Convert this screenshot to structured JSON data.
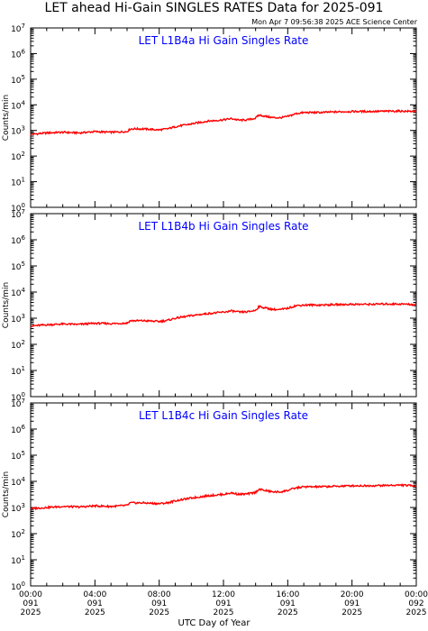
{
  "header": {
    "title": "LET ahead Hi-Gain SINGLES RATES Data for 2025-091",
    "timestamp": "Mon Apr  7 09:56:38 2025 ACE Science Center"
  },
  "xaxis": {
    "label": "UTC Day of Year",
    "ticks": [
      {
        "time": "00:00",
        "doy": "091",
        "year": "2025"
      },
      {
        "time": "04:00",
        "doy": "091",
        "year": "2025"
      },
      {
        "time": "08:00",
        "doy": "091",
        "year": "2025"
      },
      {
        "time": "12:00",
        "doy": "091",
        "year": "2025"
      },
      {
        "time": "16:00",
        "doy": "091",
        "year": "2025"
      },
      {
        "time": "20:00",
        "doy": "091",
        "year": "2025"
      },
      {
        "time": "00:00",
        "doy": "092",
        "year": "2025"
      }
    ]
  },
  "colors": {
    "series": "#ff0000",
    "panel_label": "#0000ff",
    "axis": "#000000"
  },
  "chart_data": [
    {
      "type": "line",
      "title": "LET L1B4a Hi Gain Singles Rate",
      "ylabel": "Counts/min",
      "yscale": "log",
      "ylim": [
        1,
        10000000
      ],
      "xlim_hours": [
        0,
        24
      ],
      "grid": false,
      "yticks": [
        {
          "base": "10",
          "exp": "0"
        },
        {
          "base": "10",
          "exp": "1"
        },
        {
          "base": "10",
          "exp": "2"
        },
        {
          "base": "10",
          "exp": "3"
        },
        {
          "base": "10",
          "exp": "4"
        },
        {
          "base": "10",
          "exp": "5"
        },
        {
          "base": "10",
          "exp": "6"
        },
        {
          "base": "10",
          "exp": "7"
        }
      ],
      "x_hours": [
        0,
        1,
        2,
        3,
        4,
        5,
        6,
        6.2,
        7,
        8,
        8.5,
        9,
        10,
        11,
        12,
        12.5,
        13,
        13.5,
        14,
        14.2,
        15,
        15.5,
        16,
        16.5,
        17,
        18,
        19,
        20,
        21,
        22,
        23,
        24
      ],
      "values": [
        700,
        800,
        850,
        800,
        900,
        850,
        900,
        1150,
        1150,
        1050,
        1150,
        1400,
        1800,
        2300,
        2600,
        2900,
        2500,
        2600,
        3000,
        4000,
        3200,
        3100,
        3500,
        4500,
        5000,
        5000,
        5300,
        5500,
        5500,
        5600,
        5700,
        5500
      ]
    },
    {
      "type": "line",
      "title": "LET L1B4b Hi Gain Singles Rate",
      "ylabel": "Counts/min",
      "yscale": "log",
      "ylim": [
        1,
        10000000
      ],
      "xlim_hours": [
        0,
        24
      ],
      "grid": false,
      "yticks": [
        {
          "base": "10",
          "exp": "0"
        },
        {
          "base": "10",
          "exp": "1"
        },
        {
          "base": "10",
          "exp": "2"
        },
        {
          "base": "10",
          "exp": "3"
        },
        {
          "base": "10",
          "exp": "4"
        },
        {
          "base": "10",
          "exp": "5"
        },
        {
          "base": "10",
          "exp": "6"
        },
        {
          "base": "10",
          "exp": "7"
        }
      ],
      "x_hours": [
        0,
        1,
        2,
        3,
        4,
        5,
        6,
        6.2,
        7,
        8,
        8.5,
        9,
        10,
        11,
        12,
        12.5,
        13,
        13.5,
        14,
        14.2,
        15,
        15.5,
        16,
        16.5,
        17,
        18,
        19,
        20,
        21,
        22,
        23,
        24
      ],
      "values": [
        500,
        560,
        600,
        580,
        640,
        620,
        650,
        800,
        800,
        750,
        820,
        1000,
        1250,
        1500,
        1700,
        1900,
        1700,
        1750,
        2000,
        2800,
        2200,
        2100,
        2400,
        3000,
        3200,
        3200,
        3300,
        3400,
        3400,
        3500,
        3500,
        3300
      ]
    },
    {
      "type": "line",
      "title": "LET L1B4c Hi Gain Singles Rate",
      "ylabel": "Counts/min",
      "yscale": "log",
      "ylim": [
        1,
        10000000
      ],
      "xlim_hours": [
        0,
        24
      ],
      "grid": false,
      "yticks": [
        {
          "base": "10",
          "exp": "0"
        },
        {
          "base": "10",
          "exp": "1"
        },
        {
          "base": "10",
          "exp": "2"
        },
        {
          "base": "10",
          "exp": "3"
        },
        {
          "base": "10",
          "exp": "4"
        },
        {
          "base": "10",
          "exp": "5"
        },
        {
          "base": "10",
          "exp": "6"
        },
        {
          "base": "10",
          "exp": "7"
        }
      ],
      "x_hours": [
        0,
        1,
        2,
        3,
        4,
        5,
        6,
        6.2,
        7,
        8,
        8.5,
        9,
        10,
        11,
        12,
        12.5,
        13,
        13.5,
        14,
        14.2,
        15,
        15.5,
        16,
        16.5,
        17,
        18,
        19,
        20,
        21,
        22,
        23,
        24
      ],
      "values": [
        900,
        1000,
        1100,
        1050,
        1150,
        1100,
        1200,
        1500,
        1500,
        1400,
        1500,
        1800,
        2300,
        2800,
        3200,
        3600,
        3200,
        3300,
        3800,
        5000,
        4000,
        3900,
        4500,
        5600,
        6200,
        6200,
        6500,
        6800,
        6800,
        7000,
        7200,
        6800
      ]
    }
  ]
}
